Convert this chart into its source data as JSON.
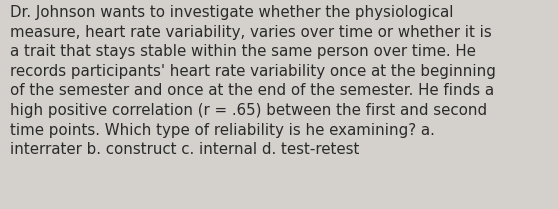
{
  "lines": [
    "Dr. Johnson wants to investigate whether the physiological",
    "measure, heart rate variability, varies over time or whether it is",
    "a trait that stays stable within the same person over time. He",
    "records participants' heart rate variability once at the beginning",
    "of the semester and once at the end of the semester. He finds a",
    "high positive correlation (r = .65) between the first and second",
    "time points. Which type of reliability is he examining? a.",
    "interrater b. construct c. internal d. test-retest"
  ],
  "background_color": "#d4d1cc",
  "text_color": "#2b2b2b",
  "font_size": 10.8,
  "fig_width": 5.58,
  "fig_height": 2.09,
  "dpi": 100
}
